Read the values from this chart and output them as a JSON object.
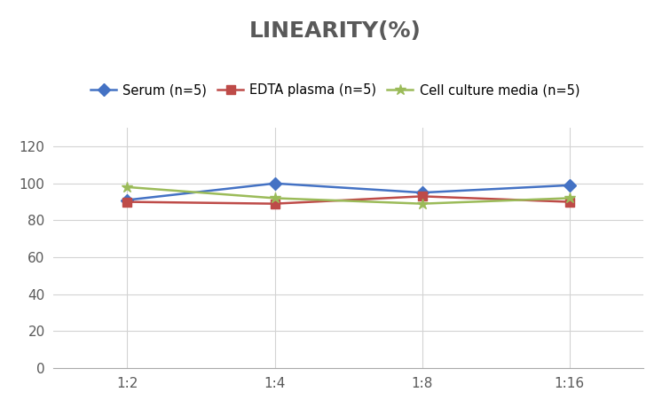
{
  "title": "LINEARITY(%)",
  "x_labels": [
    "1:2",
    "1:4",
    "1:8",
    "1:16"
  ],
  "x_positions": [
    0,
    1,
    2,
    3
  ],
  "series": [
    {
      "label": "Serum (n=5)",
      "values": [
        91,
        100,
        95,
        99
      ],
      "color": "#4472C4",
      "marker": "D",
      "markersize": 7,
      "linewidth": 1.8
    },
    {
      "label": "EDTA plasma (n=5)",
      "values": [
        90,
        89,
        93,
        90
      ],
      "color": "#BE4B48",
      "marker": "s",
      "markersize": 7,
      "linewidth": 1.8
    },
    {
      "label": "Cell culture media (n=5)",
      "values": [
        98,
        92,
        89,
        92
      ],
      "color": "#9BBB59",
      "marker": "*",
      "markersize": 9,
      "linewidth": 1.8
    }
  ],
  "ylim": [
    0,
    130
  ],
  "yticks": [
    0,
    20,
    40,
    60,
    80,
    100,
    120
  ],
  "background_color": "#FFFFFF",
  "grid_color": "#D3D3D3",
  "title_fontsize": 18,
  "title_color": "#595959",
  "legend_fontsize": 10.5,
  "tick_fontsize": 11,
  "tick_color": "#595959"
}
